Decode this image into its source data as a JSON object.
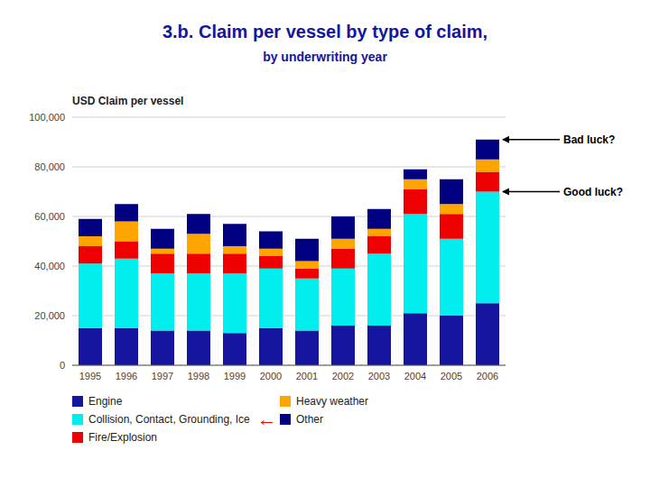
{
  "chart_data": {
    "type": "bar",
    "stacked": true,
    "title": "3.b. Claim per vessel by type of claim,",
    "subtitle": "by underwriting year",
    "y_label": "USD Claim per vessel",
    "categories": [
      "1995",
      "1996",
      "1997",
      "1998",
      "1999",
      "2000",
      "2001",
      "2002",
      "2003",
      "2004",
      "2005",
      "2006"
    ],
    "series": [
      {
        "name": "Engine",
        "color": "#1515A0",
        "values": [
          15000,
          15000,
          14000,
          14000,
          13000,
          15000,
          14000,
          16000,
          16000,
          21000,
          20000,
          25000
        ]
      },
      {
        "name": "Collision, Contact, Grounding, Ice",
        "color": "#00EEEE",
        "values": [
          26000,
          28000,
          23000,
          23000,
          24000,
          24000,
          21000,
          23000,
          29000,
          40000,
          31000,
          45000
        ]
      },
      {
        "name": "Fire/Explosion",
        "color": "#EE0000",
        "values": [
          7000,
          7000,
          8000,
          8000,
          8000,
          5000,
          4000,
          8000,
          7000,
          10000,
          10000,
          8000
        ]
      },
      {
        "name": "Heavy weather",
        "color": "#FFA500",
        "values": [
          4000,
          8000,
          2000,
          8000,
          3000,
          3000,
          3000,
          4000,
          3000,
          4000,
          4000,
          5000
        ]
      },
      {
        "name": "Other",
        "color": "#000080",
        "values": [
          7000,
          7000,
          8000,
          8000,
          9000,
          7000,
          9000,
          9000,
          8000,
          4000,
          10000,
          8000
        ]
      }
    ],
    "ylim": [
      0,
      100000
    ],
    "yticks": [
      0,
      {
        "value": 20000,
        "label": "20,000"
      },
      {
        "value": 40000,
        "label": "40,000"
      },
      {
        "value": 60000,
        "label": "60,000"
      },
      {
        "value": 80000,
        "label": "80,000"
      },
      {
        "value": 100000,
        "label": "100,000"
      }
    ],
    "grid": true,
    "legend": "bottom",
    "annotations": [
      {
        "text": "Bad luck?",
        "x": "2006",
        "y": 91000
      },
      {
        "text": "Good luck?",
        "x": "2006",
        "y": 70000
      },
      {
        "text": "←",
        "color": "#ff0000",
        "series": 1
      }
    ]
  }
}
